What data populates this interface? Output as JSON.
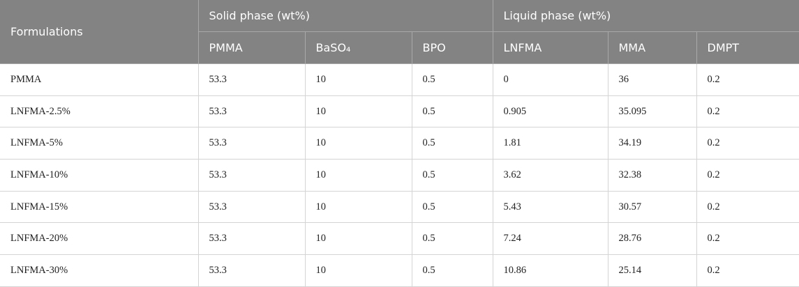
{
  "table": {
    "header": [
      "Formulations",
      "Solid phase (wt%)",
      "Liquid phase (wt%)"
    ],
    "columns": [
      "PMMA",
      "BaSO₄",
      "BPO",
      "LNFMA",
      "MMA",
      "DMPT"
    ],
    "rows": [
      [
        "PMMA",
        "53.3",
        "10",
        "0.5",
        "0",
        "36",
        "0.2"
      ],
      [
        "LNFMA-2.5%",
        "53.3",
        "10",
        "0.5",
        "0.905",
        "35.095",
        "0.2"
      ],
      [
        "LNFMA-5%",
        "53.3",
        "10",
        "0.5",
        "1.81",
        "34.19",
        "0.2"
      ],
      [
        "LNFMA-10%",
        "53.3",
        "10",
        "0.5",
        "3.62",
        "32.38",
        "0.2"
      ],
      [
        "LNFMA-15%",
        "53.3",
        "10",
        "0.5",
        "5.43",
        "30.57",
        "0.2"
      ],
      [
        "LNFMA-20%",
        "53.3",
        "10",
        "0.5",
        "7.24",
        "28.76",
        "0.2"
      ],
      [
        "LNFMA-30%",
        "53.3",
        "10",
        "0.5",
        "10.86",
        "25.14",
        "0.2"
      ]
    ]
  }
}
